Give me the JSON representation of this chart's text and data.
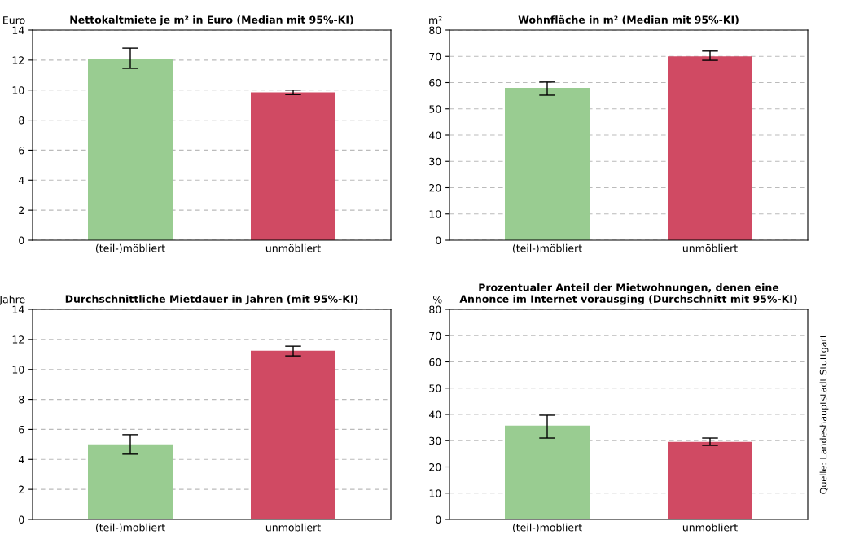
{
  "chart_data": [
    {
      "type": "bar",
      "title": "Nettokaltmiete je m² in Euro (Median mit 95%-KI)",
      "ylabel": "Euro",
      "categories": [
        "(teil-)möbliert",
        "unmöbliert"
      ],
      "values": [
        12.1,
        9.85
      ],
      "colors": [
        "#99cc91",
        "#d04a63"
      ],
      "errors": [
        [
          11.45,
          12.8
        ],
        [
          9.7,
          10.0
        ]
      ],
      "ylim": [
        0,
        14
      ],
      "yticks": [
        0,
        2,
        4,
        6,
        8,
        10,
        12,
        14
      ],
      "grid": "y"
    },
    {
      "type": "bar",
      "title": "Wohnfläche in m² (Median mit 95%-KI)",
      "ylabel": "m²",
      "categories": [
        "(teil-)möbliert",
        "unmöbliert"
      ],
      "values": [
        58,
        70
      ],
      "colors": [
        "#99cc91",
        "#d04a63"
      ],
      "errors": [
        [
          55.2,
          60.2
        ],
        [
          68.5,
          72
        ]
      ],
      "ylim": [
        0,
        80
      ],
      "yticks": [
        0,
        10,
        20,
        30,
        40,
        50,
        60,
        70,
        80
      ],
      "grid": "y"
    },
    {
      "type": "bar",
      "title": "Durchschnittliche Mietdauer in Jahren (mit 95%-KI)",
      "ylabel": "Jahre",
      "categories": [
        "(teil-)möbliert",
        "unmöbliert"
      ],
      "values": [
        5.0,
        11.25
      ],
      "colors": [
        "#99cc91",
        "#d04a63"
      ],
      "errors": [
        [
          4.35,
          5.65
        ],
        [
          10.9,
          11.55
        ]
      ],
      "ylim": [
        0,
        14
      ],
      "yticks": [
        0,
        2,
        4,
        6,
        8,
        10,
        12,
        14
      ],
      "grid": "y"
    },
    {
      "type": "bar",
      "title": "Prozentualer Anteil der Mietwohnungen, denen eine\nAnnonce im Internet vorausging (Durchschnitt mit 95%-KI)",
      "ylabel": "%",
      "categories": [
        "(teil-)möbliert",
        "unmöbliert"
      ],
      "values": [
        35.7,
        29.5
      ],
      "colors": [
        "#99cc91",
        "#d04a63"
      ],
      "errors": [
        [
          31,
          39.7
        ],
        [
          28.2,
          31
        ]
      ],
      "ylim": [
        0,
        80
      ],
      "yticks": [
        0,
        10,
        20,
        30,
        40,
        50,
        60,
        70,
        80
      ],
      "grid": "y",
      "annotations": [
        "Quelle: Landeshauptstadt Stuttgart"
      ]
    }
  ]
}
